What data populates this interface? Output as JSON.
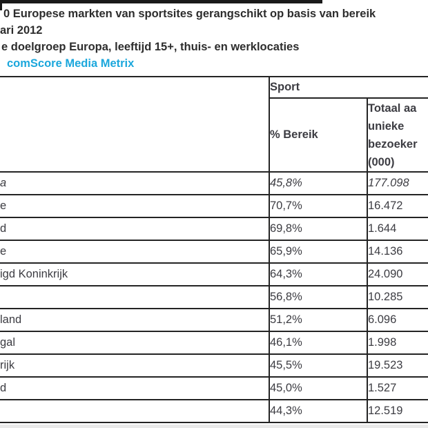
{
  "header": {
    "title_line1": "0 Europese markten van sportsites gerangschikt op basis van bereik",
    "title_line2": "ari 2012",
    "title_line3": "e doelgroep Europa, leeftijd 15+, thuis- en werklocaties",
    "source": "comScore Media Metrix",
    "source_color": "#1ba7dc"
  },
  "table": {
    "group_header": "Sport",
    "col_pct_header": "% Bereik",
    "col_total_header": "Totaal aa\nunieke\nbezoeker\n(000)",
    "rows": [
      {
        "name": "a",
        "pct": "45,8%",
        "total": "177.098"
      },
      {
        "name": "e",
        "pct": "70,7%",
        "total": "16.472"
      },
      {
        "name": "d",
        "pct": "69,8%",
        "total": "1.644"
      },
      {
        "name": "e",
        "pct": "65,9%",
        "total": "14.136"
      },
      {
        "name": "igd Koninkrijk",
        "pct": "64,3%",
        "total": "24.090"
      },
      {
        "name": "",
        "pct": "56,8%",
        "total": "10.285"
      },
      {
        "name": "land",
        "pct": "51,2%",
        "total": "6.096"
      },
      {
        "name": "gal",
        "pct": "46,1%",
        "total": "1.998"
      },
      {
        "name": "rijk",
        "pct": "45,5%",
        "total": "19.523"
      },
      {
        "name": "d",
        "pct": "45,0%",
        "total": "1.527"
      },
      {
        "name": "",
        "pct": "44,3%",
        "total": "12.519"
      }
    ]
  },
  "chart_data": {
    "type": "table",
    "title": "0 Europese markten van sportsites gerangschikt op basis van bereik",
    "subtitle": "ari 2012",
    "audience_note": "e doelgroep Europa, leeftijd 15+, thuis- en werklocaties",
    "source": "comScore Media Metrix",
    "column_group": "Sport",
    "columns": [
      "",
      "% Bereik",
      "Totaal aa unieke bezoeker (000)"
    ],
    "rows": [
      {
        "market": "a",
        "reach_pct": 45.8,
        "unique_visitors_000": 177098,
        "italic": true
      },
      {
        "market": "e",
        "reach_pct": 70.7,
        "unique_visitors_000": 16472
      },
      {
        "market": "d",
        "reach_pct": 69.8,
        "unique_visitors_000": 1644
      },
      {
        "market": "e",
        "reach_pct": 65.9,
        "unique_visitors_000": 14136
      },
      {
        "market": "igd Koninkrijk",
        "reach_pct": 64.3,
        "unique_visitors_000": 24090
      },
      {
        "market": "",
        "reach_pct": 56.8,
        "unique_visitors_000": 10285
      },
      {
        "market": "land",
        "reach_pct": 51.2,
        "unique_visitors_000": 6096
      },
      {
        "market": "gal",
        "reach_pct": 46.1,
        "unique_visitors_000": 1998
      },
      {
        "market": "rijk",
        "reach_pct": 45.5,
        "unique_visitors_000": 19523
      },
      {
        "market": "d",
        "reach_pct": 45.0,
        "unique_visitors_000": 1527
      },
      {
        "market": "",
        "reach_pct": 44.3,
        "unique_visitors_000": 12519
      }
    ],
    "layout": {
      "left_edge_cropped": true,
      "right_edge_cropped": true,
      "border_color": "#232323",
      "accent_color": "#1ba7dc"
    }
  }
}
